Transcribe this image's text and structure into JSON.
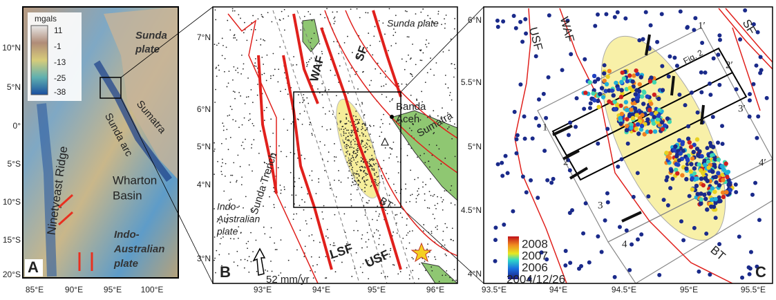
{
  "panel_a": {
    "label": "A",
    "lat_labels": [
      "10°N",
      "5°N",
      "0°",
      "5°S",
      "10°S",
      "15°S",
      "20°S"
    ],
    "lon_labels": [
      "85°E",
      "90°E",
      "95°E",
      "100°E"
    ],
    "legend": {
      "title": "mgals",
      "ticks": [
        "11",
        "-1",
        "-13",
        "-25",
        "-38"
      ]
    },
    "annotations": {
      "sunda_plate": [
        "Sunda",
        "plate"
      ],
      "sunda_arc": "Sunda arc",
      "sumatra": "Sumatra",
      "ninetyeast_ridge": "Ninetyeast Ridge",
      "wharton_basin": [
        "Wharton",
        "Basin"
      ],
      "indo_australian_plate": [
        "Indo-",
        "Australian",
        "plate"
      ]
    }
  },
  "panel_b": {
    "label": "B",
    "lat_labels": [
      "7°N",
      "6°N",
      "5°N",
      "4°N",
      "3°N"
    ],
    "lon_labels": [
      "93°E",
      "94°E",
      "95°E",
      "96°E"
    ],
    "annotations": {
      "sunda_plate": "Sunda plate",
      "waf": "WAF",
      "sf": "SF",
      "banda_aceh": [
        "Banda",
        "Aceh"
      ],
      "sumatra": "Sumatra",
      "sunda_trench": "Sunda Trench",
      "bt": "BT",
      "indo_australian_plate": [
        "Indo-",
        "Australian",
        "plate"
      ],
      "lsf": "LSF",
      "usf": "USF",
      "rate": "52 mm/yr"
    }
  },
  "panel_c": {
    "label": "C",
    "lat_labels": [
      "6°N",
      "5.5°N",
      "5°N",
      "4.5°N",
      "4°N"
    ],
    "lon_labels": [
      "93.5°E",
      "94°E",
      "94.5°E",
      "95°E",
      "95.5°E"
    ],
    "annotations": {
      "usf": "USF",
      "waf": "WAF",
      "sf": "SF",
      "bt": "BT",
      "fig2": "Fig. 2"
    },
    "profiles_start": [
      "1",
      "2",
      "3",
      "4"
    ],
    "profiles_end": [
      "1′",
      "2′",
      "3′",
      "4′"
    ],
    "colorbar": [
      "2008",
      "2007",
      "2006",
      "2004/12/26"
    ]
  }
}
